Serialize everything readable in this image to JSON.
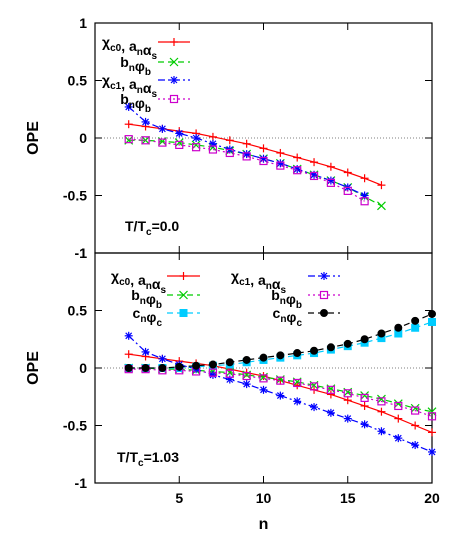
{
  "chart_data": {
    "type": "line",
    "shared_xlabel": "n",
    "panels": [
      {
        "ylabel": "OPE",
        "ylim": [
          -1,
          1
        ],
        "yticks": [
          "1",
          "0.5",
          "0",
          "-0.5",
          "-1"
        ],
        "xlim": [
          0,
          20
        ],
        "annotation": "T/Tc=0.0",
        "legend_layout": "stacked",
        "series": [
          {
            "name": "χc0, anαs",
            "color": "#ff0000",
            "marker": "plus",
            "dash": "solid",
            "x": [
              2,
              3,
              4,
              5,
              6,
              7,
              8,
              9,
              10,
              11,
              12,
              13,
              14,
              15,
              16,
              17
            ],
            "y": [
              0.12,
              0.1,
              0.08,
              0.06,
              0.04,
              0.01,
              -0.02,
              -0.05,
              -0.09,
              -0.13,
              -0.17,
              -0.21,
              -0.25,
              -0.3,
              -0.35,
              -0.41
            ]
          },
          {
            "name": "bnφb",
            "color": "#00cc00",
            "marker": "x",
            "dash": "dashed",
            "x": [
              2,
              3,
              4,
              5,
              6,
              7,
              8,
              9,
              10,
              11,
              12,
              13,
              14,
              15,
              16,
              17
            ],
            "y": [
              -0.02,
              -0.02,
              -0.03,
              -0.04,
              -0.06,
              -0.08,
              -0.11,
              -0.14,
              -0.18,
              -0.22,
              -0.27,
              -0.32,
              -0.37,
              -0.43,
              -0.51,
              -0.59
            ]
          },
          {
            "name": "χc1, anαs",
            "color": "#0000ff",
            "marker": "star",
            "dash": "dashdot",
            "x": [
              2,
              3,
              4,
              5,
              6,
              7,
              8,
              9,
              10,
              11,
              12,
              13,
              14,
              15,
              16
            ],
            "y": [
              0.27,
              0.14,
              0.08,
              0.04,
              0.0,
              -0.05,
              -0.1,
              -0.14,
              -0.18,
              -0.22,
              -0.27,
              -0.32,
              -0.37,
              -0.43,
              -0.5
            ]
          },
          {
            "name": "bnφb",
            "color": "#cc00cc",
            "marker": "square",
            "dash": "dotted",
            "x": [
              2,
              3,
              4,
              5,
              6,
              7,
              8,
              9,
              10,
              11,
              12,
              13,
              14,
              15,
              16
            ],
            "y": [
              -0.01,
              -0.02,
              -0.04,
              -0.06,
              -0.08,
              -0.1,
              -0.13,
              -0.16,
              -0.2,
              -0.24,
              -0.28,
              -0.33,
              -0.39,
              -0.46,
              -0.55
            ]
          }
        ]
      },
      {
        "ylabel": "OPE",
        "ylim": [
          -1,
          1
        ],
        "yticks": [
          "-1",
          "-0.5",
          "0",
          "0.5",
          "1"
        ],
        "xlim": [
          0,
          20
        ],
        "xticks": [
          "5",
          "10",
          "15",
          "20"
        ],
        "annotation": "T/Tc=1.03",
        "legend_layout": "two-column",
        "series": [
          {
            "name": "χc0, anαs",
            "color": "#ff0000",
            "marker": "plus",
            "dash": "solid",
            "x": [
              2,
              3,
              4,
              5,
              6,
              7,
              8,
              9,
              10,
              11,
              12,
              13,
              14,
              15,
              16,
              17,
              18,
              19,
              20
            ],
            "y": [
              0.12,
              0.1,
              0.08,
              0.06,
              0.04,
              0.02,
              -0.01,
              -0.04,
              -0.07,
              -0.11,
              -0.15,
              -0.19,
              -0.23,
              -0.28,
              -0.33,
              -0.38,
              -0.44,
              -0.5,
              -0.56
            ]
          },
          {
            "name": "bnφb",
            "color": "#00cc00",
            "marker": "x",
            "dash": "dashed",
            "x": [
              2,
              3,
              4,
              5,
              6,
              7,
              8,
              9,
              10,
              11,
              12,
              13,
              14,
              15,
              16,
              17,
              18,
              19,
              20
            ],
            "y": [
              0.0,
              0.0,
              -0.01,
              -0.01,
              -0.02,
              -0.03,
              -0.04,
              -0.06,
              -0.08,
              -0.1,
              -0.12,
              -0.15,
              -0.18,
              -0.21,
              -0.24,
              -0.27,
              -0.31,
              -0.35,
              -0.38
            ]
          },
          {
            "name": "cnφc",
            "color": "#00ccff",
            "marker": "filled-square",
            "dash": "dashed",
            "x": [
              2,
              3,
              4,
              5,
              6,
              7,
              8,
              9,
              10,
              11,
              12,
              13,
              14,
              15,
              16,
              17,
              18,
              19,
              20
            ],
            "y": [
              0.0,
              0.0,
              0.0,
              0.0,
              0.01,
              0.02,
              0.03,
              0.05,
              0.07,
              0.09,
              0.11,
              0.13,
              0.16,
              0.19,
              0.22,
              0.26,
              0.3,
              0.35,
              0.4
            ]
          },
          {
            "name": "χc1, anαs",
            "color": "#0000ff",
            "marker": "star",
            "dash": "dashdot",
            "x": [
              2,
              3,
              4,
              5,
              6,
              7,
              8,
              9,
              10,
              11,
              12,
              13,
              14,
              15,
              16,
              17,
              18,
              19,
              20
            ],
            "y": [
              0.28,
              0.14,
              0.08,
              0.03,
              -0.01,
              -0.06,
              -0.1,
              -0.14,
              -0.19,
              -0.24,
              -0.29,
              -0.34,
              -0.39,
              -0.44,
              -0.49,
              -0.55,
              -0.61,
              -0.67,
              -0.73
            ]
          },
          {
            "name": "bnφb",
            "color": "#cc00cc",
            "marker": "square",
            "dash": "dotted",
            "x": [
              2,
              3,
              4,
              5,
              6,
              7,
              8,
              9,
              10,
              11,
              12,
              13,
              14,
              15,
              16,
              17,
              18,
              19,
              20
            ],
            "y": [
              -0.01,
              -0.01,
              -0.02,
              -0.02,
              -0.03,
              -0.04,
              -0.05,
              -0.07,
              -0.09,
              -0.11,
              -0.13,
              -0.16,
              -0.19,
              -0.22,
              -0.26,
              -0.29,
              -0.33,
              -0.37,
              -0.42
            ]
          },
          {
            "name": "cnφc",
            "color": "#000000",
            "marker": "circle",
            "dash": "dashed",
            "x": [
              2,
              3,
              4,
              5,
              6,
              7,
              8,
              9,
              10,
              11,
              12,
              13,
              14,
              15,
              16,
              17,
              18,
              19,
              20
            ],
            "y": [
              0.0,
              0.0,
              0.0,
              0.01,
              0.02,
              0.03,
              0.05,
              0.07,
              0.09,
              0.11,
              0.13,
              0.15,
              0.18,
              0.21,
              0.25,
              0.3,
              0.35,
              0.41,
              0.47
            ]
          }
        ]
      }
    ]
  }
}
